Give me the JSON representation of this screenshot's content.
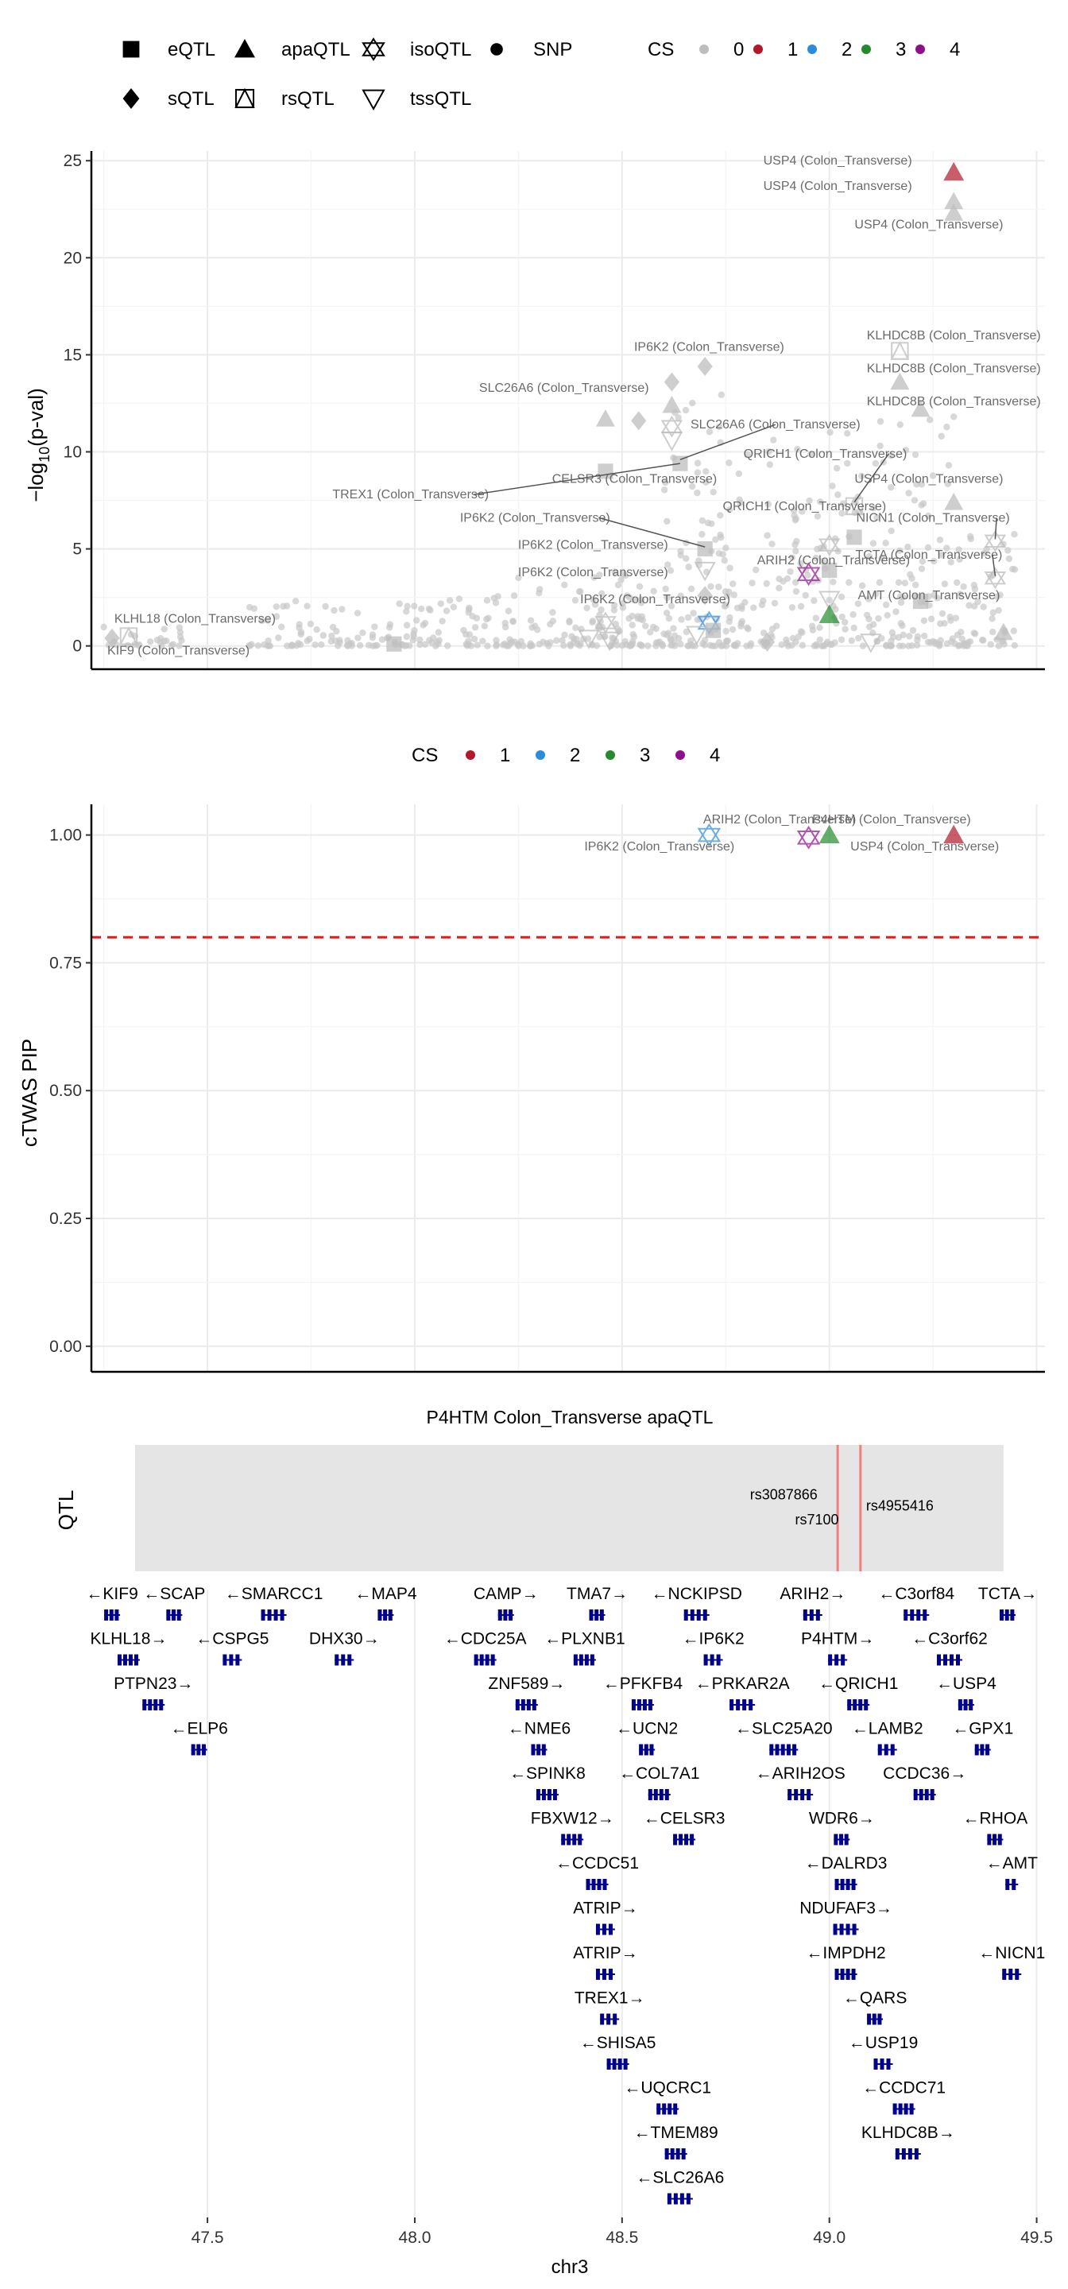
{
  "legend_top": {
    "shapes": [
      {
        "label": "eQTL",
        "shape": "square"
      },
      {
        "label": "apaQTL",
        "shape": "triangle"
      },
      {
        "label": "isoQTL",
        "shape": "star"
      },
      {
        "label": "SNP",
        "shape": "dot"
      },
      {
        "label": "sQTL",
        "shape": "diamond"
      },
      {
        "label": "rsQTL",
        "shape": "boxtri"
      },
      {
        "label": "tssQTL",
        "shape": "invtri"
      }
    ],
    "cs_title": "CS",
    "cs": [
      {
        "label": "0",
        "color": "#bdbdbd"
      },
      {
        "label": "1",
        "color": "#b2182b"
      },
      {
        "label": "2",
        "color": "#2b8cdc"
      },
      {
        "label": "3",
        "color": "#238b2e"
      },
      {
        "label": "4",
        "color": "#8e0f8e"
      }
    ]
  },
  "legend_mid": {
    "cs_title": "CS",
    "cs": [
      {
        "label": "1",
        "color": "#b2182b"
      },
      {
        "label": "2",
        "color": "#2b8cdc"
      },
      {
        "label": "3",
        "color": "#238b2e"
      },
      {
        "label": "4",
        "color": "#8e0f8e"
      }
    ]
  },
  "chart_data": [
    {
      "type": "scatter",
      "ylabel_main": "−log",
      "ylabel_sub": "10",
      "ylabel_tail": "(p-val)",
      "xlim": [
        47.22,
        49.52
      ],
      "ylim": [
        -1.2,
        25.5
      ],
      "yticks": [
        "0",
        "5",
        "10",
        "15",
        "20",
        "25"
      ],
      "ytick_values": [
        0,
        5,
        10,
        15,
        20,
        25
      ],
      "points": [
        {
          "x": 49.3,
          "y": 24.4,
          "shape": "triangle",
          "cs": "1"
        },
        {
          "x": 49.3,
          "y": 22.9,
          "shape": "triangle",
          "cs": "0"
        },
        {
          "x": 49.3,
          "y": 22.3,
          "shape": "triangle",
          "cs": "0"
        },
        {
          "x": 49.17,
          "y": 15.2,
          "shape": "boxtri",
          "cs": "0"
        },
        {
          "x": 49.17,
          "y": 13.6,
          "shape": "triangle",
          "cs": "0"
        },
        {
          "x": 49.22,
          "y": 12.2,
          "shape": "triangle",
          "cs": "0"
        },
        {
          "x": 48.7,
          "y": 14.4,
          "shape": "diamond",
          "cs": "0"
        },
        {
          "x": 48.62,
          "y": 13.6,
          "shape": "diamond",
          "cs": "0"
        },
        {
          "x": 48.62,
          "y": 12.4,
          "shape": "triangle",
          "cs": "0"
        },
        {
          "x": 48.62,
          "y": 11.3,
          "shape": "star",
          "cs": "0"
        },
        {
          "x": 48.62,
          "y": 10.6,
          "shape": "invtri",
          "cs": "0"
        },
        {
          "x": 48.54,
          "y": 11.6,
          "shape": "diamond",
          "cs": "0"
        },
        {
          "x": 48.46,
          "y": 11.7,
          "shape": "triangle",
          "cs": "0"
        },
        {
          "x": 48.64,
          "y": 9.4,
          "shape": "square",
          "cs": "0"
        },
        {
          "x": 48.46,
          "y": 9.0,
          "shape": "square",
          "cs": "0"
        },
        {
          "x": 49.3,
          "y": 7.4,
          "shape": "triangle",
          "cs": "0"
        },
        {
          "x": 49.06,
          "y": 7.2,
          "shape": "boxtri",
          "cs": "0"
        },
        {
          "x": 49.06,
          "y": 5.6,
          "shape": "square",
          "cs": "0"
        },
        {
          "x": 49.0,
          "y": 5.2,
          "shape": "star",
          "cs": "0"
        },
        {
          "x": 49.4,
          "y": 5.4,
          "shape": "star",
          "cs": "0"
        },
        {
          "x": 48.7,
          "y": 5.0,
          "shape": "square",
          "cs": "0"
        },
        {
          "x": 48.7,
          "y": 3.9,
          "shape": "invtri",
          "cs": "0"
        },
        {
          "x": 48.95,
          "y": 3.7,
          "shape": "star",
          "cs": "4"
        },
        {
          "x": 49.0,
          "y": 3.9,
          "shape": "square",
          "cs": "0"
        },
        {
          "x": 49.4,
          "y": 3.5,
          "shape": "star",
          "cs": "0"
        },
        {
          "x": 49.0,
          "y": 2.4,
          "shape": "invtri",
          "cs": "0"
        },
        {
          "x": 49.22,
          "y": 2.3,
          "shape": "square",
          "cs": "0"
        },
        {
          "x": 48.7,
          "y": 2.6,
          "shape": "diamond",
          "cs": "0"
        },
        {
          "x": 48.71,
          "y": 1.2,
          "shape": "star",
          "cs": "2"
        },
        {
          "x": 49.0,
          "y": 1.6,
          "shape": "triangle",
          "cs": "3"
        },
        {
          "x": 49.42,
          "y": 0.7,
          "shape": "triangle",
          "cs": "0"
        },
        {
          "x": 48.46,
          "y": 1.2,
          "shape": "star",
          "cs": "0"
        },
        {
          "x": 48.42,
          "y": 0.4,
          "shape": "invtri",
          "cs": "0"
        },
        {
          "x": 48.47,
          "y": 0.3,
          "shape": "invtri",
          "cs": "0"
        },
        {
          "x": 48.68,
          "y": 0.6,
          "shape": "invtri",
          "cs": "0"
        },
        {
          "x": 49.1,
          "y": 0.2,
          "shape": "invtri",
          "cs": "0"
        },
        {
          "x": 47.31,
          "y": 0.5,
          "shape": "boxtri",
          "cs": "0"
        },
        {
          "x": 47.27,
          "y": 0.4,
          "shape": "diamond",
          "cs": "0"
        },
        {
          "x": 47.95,
          "y": 0.1,
          "shape": "square",
          "cs": "0"
        },
        {
          "x": 48.72,
          "y": 0.8,
          "shape": "square",
          "cs": "0"
        },
        {
          "x": 48.85,
          "y": 0.2,
          "shape": "diamond",
          "cs": "0"
        }
      ],
      "labels": [
        {
          "text": "USP4 (Colon_Transverse)",
          "x": 49.02,
          "y": 24.8
        },
        {
          "text": "USP4 (Colon_Transverse)",
          "x": 49.02,
          "y": 23.5
        },
        {
          "text": "USP4 (Colon_Transverse)",
          "x": 49.24,
          "y": 21.5
        },
        {
          "text": "KLHDC8B (Colon_Transverse)",
          "x": 49.3,
          "y": 15.8
        },
        {
          "text": "KLHDC8B (Colon_Transverse)",
          "x": 49.3,
          "y": 14.1
        },
        {
          "text": "KLHDC8B (Colon_Transverse)",
          "x": 49.3,
          "y": 12.4
        },
        {
          "text": "IP6K2 (Colon_Transverse)",
          "x": 48.71,
          "y": 15.2
        },
        {
          "text": "SLC26A6 (Colon_Transverse)",
          "x": 48.36,
          "y": 13.1
        },
        {
          "text": "SLC26A6 (Colon_Transverse)",
          "x": 48.87,
          "y": 11.2
        },
        {
          "text": "QRICH1 (Colon_Transverse)",
          "x": 48.99,
          "y": 9.7
        },
        {
          "text": "USP4 (Colon_Transverse)",
          "x": 49.24,
          "y": 8.4
        },
        {
          "text": "CELSR3 (Colon_Transverse)",
          "x": 48.53,
          "y": 8.4
        },
        {
          "text": "TREX1 (Colon_Transverse)",
          "x": 47.99,
          "y": 7.6
        },
        {
          "text": "QRICH1 (Colon_Transverse)",
          "x": 48.94,
          "y": 7.0
        },
        {
          "text": "IP6K2 (Colon_Transverse)",
          "x": 48.29,
          "y": 6.4
        },
        {
          "text": "NICN1 (Colon_Transverse)",
          "x": 49.25,
          "y": 6.4
        },
        {
          "text": "IP6K2 (Colon_Transverse)",
          "x": 48.43,
          "y": 5.0
        },
        {
          "text": "TCTA (Colon_Transverse)",
          "x": 49.24,
          "y": 4.5
        },
        {
          "text": "ARIH2 (Colon_Transverse)",
          "x": 49.01,
          "y": 4.2
        },
        {
          "text": "IP6K2 (Colon_Transverse)",
          "x": 48.43,
          "y": 3.6
        },
        {
          "text": "AMT (Colon_Transverse)",
          "x": 49.24,
          "y": 2.4
        },
        {
          "text": "IP6K2 (Colon_Transverse)",
          "x": 48.58,
          "y": 2.2
        },
        {
          "text": "KLHL18 (Colon_Transverse)",
          "x": 47.47,
          "y": 1.2
        },
        {
          "text": "KIF9 (Colon_Transverse)",
          "x": 47.43,
          "y": -0.45
        }
      ]
    },
    {
      "type": "scatter",
      "ylabel": "cTWAS PIP",
      "xlim": [
        47.22,
        49.52
      ],
      "ylim": [
        -0.05,
        1.06
      ],
      "yticks": [
        "0.00",
        "0.25",
        "0.50",
        "0.75",
        "1.00"
      ],
      "ytick_values": [
        0,
        0.25,
        0.5,
        0.75,
        1.0
      ],
      "threshold": 0.8,
      "points": [
        {
          "x": 48.71,
          "y": 1.0,
          "shape": "star",
          "cs": "2"
        },
        {
          "x": 48.95,
          "y": 0.995,
          "shape": "star",
          "cs": "4"
        },
        {
          "x": 49.0,
          "y": 1.0,
          "shape": "triangle",
          "cs": "3"
        },
        {
          "x": 49.3,
          "y": 1.0,
          "shape": "triangle",
          "cs": "1"
        }
      ],
      "labels": [
        {
          "text": "ARIH2 (Colon_Transverse)",
          "x": 48.88,
          "y": 1.023
        },
        {
          "text": "P4HTM (Colon_Transverse)",
          "x": 49.15,
          "y": 1.023
        },
        {
          "text": "IP6K2 (Colon_Transverse)",
          "x": 48.59,
          "y": 0.97
        },
        {
          "text": "USP4 (Colon_Transverse)",
          "x": 49.23,
          "y": 0.97
        }
      ]
    },
    {
      "type": "table",
      "title": "P4HTM Colon_Transverse apaQTL",
      "ylabel": "QTL",
      "region": [
        47.22,
        49.42
      ],
      "snps": [
        {
          "name": "rs3087866",
          "pos": 49.02,
          "label_x": 48.89,
          "label_y_row": 0.43
        },
        {
          "name": "rs7100",
          "pos": 49.02,
          "label_x": 48.97,
          "label_y_row": 0.63
        },
        {
          "name": "rs4955416",
          "pos": 49.075,
          "label_x": 49.17,
          "label_y_row": 0.52
        }
      ],
      "genes": [
        {
          "label": "←KIF9",
          "x": 47.27,
          "row": 0
        },
        {
          "label": "←SCAP",
          "x": 47.42,
          "row": 0
        },
        {
          "label": "←SMARCC1",
          "x": 47.66,
          "row": 0
        },
        {
          "label": "←MAP4",
          "x": 47.93,
          "row": 0
        },
        {
          "label": "CAMP→",
          "x": 48.22,
          "row": 0
        },
        {
          "label": "TMA7→",
          "x": 48.44,
          "row": 0
        },
        {
          "label": "←NCKIPSD",
          "x": 48.68,
          "row": 0
        },
        {
          "label": "ARIH2→",
          "x": 48.96,
          "row": 0
        },
        {
          "label": "←C3orf84",
          "x": 49.21,
          "row": 0
        },
        {
          "label": "TCTA→",
          "x": 49.43,
          "row": 0
        },
        {
          "label": "KLHL18→",
          "x": 47.31,
          "row": 1
        },
        {
          "label": "←CSPG5",
          "x": 47.56,
          "row": 1
        },
        {
          "label": "DHX30→",
          "x": 47.83,
          "row": 1
        },
        {
          "label": "←CDC25A",
          "x": 48.17,
          "row": 1
        },
        {
          "label": "←PLXNB1",
          "x": 48.41,
          "row": 1
        },
        {
          "label": "←IP6K2",
          "x": 48.72,
          "row": 1
        },
        {
          "label": "P4HTM→",
          "x": 49.02,
          "row": 1
        },
        {
          "label": "←C3orf62",
          "x": 49.29,
          "row": 1
        },
        {
          "label": "PTPN23→",
          "x": 47.37,
          "row": 2
        },
        {
          "label": "ZNF589→",
          "x": 48.27,
          "row": 2
        },
        {
          "label": "←PFKFB4",
          "x": 48.55,
          "row": 2
        },
        {
          "label": "←PRKAR2A",
          "x": 48.79,
          "row": 2
        },
        {
          "label": "←QRICH1",
          "x": 49.07,
          "row": 2
        },
        {
          "label": "←USP4",
          "x": 49.33,
          "row": 2
        },
        {
          "label": "←ELP6",
          "x": 47.48,
          "row": 3
        },
        {
          "label": "←NME6",
          "x": 48.3,
          "row": 3
        },
        {
          "label": "←UCN2",
          "x": 48.56,
          "row": 3
        },
        {
          "label": "←SLC25A20",
          "x": 48.89,
          "row": 3
        },
        {
          "label": "←LAMB2",
          "x": 49.14,
          "row": 3
        },
        {
          "label": "←GPX1",
          "x": 49.37,
          "row": 3
        },
        {
          "label": "←SPINK8",
          "x": 48.32,
          "row": 4
        },
        {
          "label": "←COL7A1",
          "x": 48.59,
          "row": 4
        },
        {
          "label": "←ARIH2OS",
          "x": 48.93,
          "row": 4
        },
        {
          "label": "CCDC36→",
          "x": 49.23,
          "row": 4
        },
        {
          "label": "FBXW12→",
          "x": 48.38,
          "row": 5
        },
        {
          "label": "←CELSR3",
          "x": 48.65,
          "row": 5
        },
        {
          "label": "WDR6→",
          "x": 49.03,
          "row": 5
        },
        {
          "label": "←RHOA",
          "x": 49.4,
          "row": 5
        },
        {
          "label": "←CCDC51",
          "x": 48.44,
          "row": 6
        },
        {
          "label": "←DALRD3",
          "x": 49.04,
          "row": 6
        },
        {
          "label": "←AMT",
          "x": 49.44,
          "row": 6
        },
        {
          "label": "ATRIP→",
          "x": 48.46,
          "row": 7
        },
        {
          "label": "NDUFAF3→",
          "x": 49.04,
          "row": 7
        },
        {
          "label": "ATRIP→",
          "x": 48.46,
          "row": 8
        },
        {
          "label": "←IMPDH2",
          "x": 49.04,
          "row": 8
        },
        {
          "label": "←NICN1",
          "x": 49.44,
          "row": 8
        },
        {
          "label": "TREX1→",
          "x": 48.47,
          "row": 9
        },
        {
          "label": "←QARS",
          "x": 49.11,
          "row": 9
        },
        {
          "label": "←SHISA5",
          "x": 48.49,
          "row": 10
        },
        {
          "label": "←USP19",
          "x": 49.13,
          "row": 10
        },
        {
          "label": "←UQCRC1",
          "x": 48.61,
          "row": 11
        },
        {
          "label": "←CCDC71",
          "x": 49.18,
          "row": 11
        },
        {
          "label": "←TMEM89",
          "x": 48.63,
          "row": 12
        },
        {
          "label": "KLHDC8B→",
          "x": 49.19,
          "row": 12
        },
        {
          "label": "←SLC26A6",
          "x": 48.64,
          "row": 13
        }
      ],
      "xticks": [
        "47.5",
        "48.0",
        "48.5",
        "49.0",
        "49.5"
      ],
      "xtick_values": [
        47.5,
        48.0,
        48.5,
        49.0,
        49.5
      ],
      "xlabel": "chr3"
    }
  ]
}
